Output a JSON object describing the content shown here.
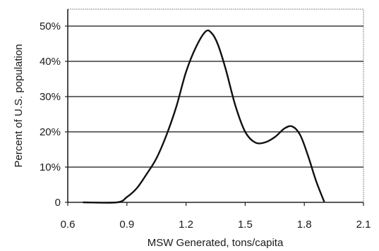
{
  "chart_data": {
    "type": "line",
    "xlabel": "MSW Generated, tons/capita",
    "ylabel": "Percent of U.S. population",
    "xlim": [
      0.6,
      2.1
    ],
    "ylim": [
      0,
      55
    ],
    "x_ticks": [
      0.6,
      0.9,
      1.2,
      1.5,
      1.8,
      2.1
    ],
    "x_tick_labels": [
      "0.6",
      "0.9",
      "1.2",
      "1.5",
      "1.8",
      "2.1"
    ],
    "y_ticks": [
      0,
      10,
      20,
      30,
      40,
      50
    ],
    "y_tick_labels": [
      "0",
      "10%",
      "20%",
      "30%",
      "40%",
      "50%"
    ],
    "grid": "horizontal",
    "series": [
      {
        "x": [
          0.68,
          0.85,
          0.9,
          0.95,
          1.0,
          1.05,
          1.1,
          1.15,
          1.2,
          1.25,
          1.3,
          1.33,
          1.36,
          1.4,
          1.45,
          1.5,
          1.55,
          1.6,
          1.65,
          1.7,
          1.74,
          1.78,
          1.82,
          1.86,
          1.9
        ],
        "y": [
          0,
          0,
          1.5,
          4,
          8,
          12.5,
          19,
          27,
          37,
          44,
          48.5,
          48,
          45,
          38,
          27.5,
          20,
          17,
          17,
          18.5,
          21,
          21.5,
          19,
          13,
          6,
          0.3
        ]
      }
    ]
  }
}
